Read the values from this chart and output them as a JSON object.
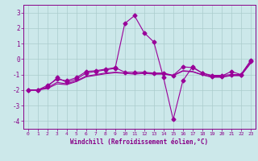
{
  "xlabel": "Windchill (Refroidissement éolien,°C)",
  "background_color": "#cce8ea",
  "line_color": "#990099",
  "grid_color": "#aacccc",
  "xlim": [
    -0.5,
    23.5
  ],
  "ylim": [
    -4.5,
    3.5
  ],
  "xticks": [
    0,
    1,
    2,
    3,
    4,
    5,
    6,
    7,
    8,
    9,
    10,
    11,
    12,
    13,
    14,
    15,
    16,
    17,
    18,
    19,
    20,
    21,
    22,
    23
  ],
  "yticks": [
    -4,
    -3,
    -2,
    -1,
    0,
    1,
    2,
    3
  ],
  "series": [
    {
      "x": [
        0,
        1,
        2,
        3,
        4,
        5,
        6,
        7,
        8,
        9,
        10,
        11,
        12,
        13,
        14,
        15,
        16,
        17,
        18,
        19,
        20,
        21,
        22,
        23
      ],
      "y": [
        -2,
        -2,
        -1.8,
        -1.2,
        -1.5,
        -1.3,
        -0.9,
        -0.8,
        -0.7,
        -0.6,
        2.3,
        2.8,
        1.7,
        1.1,
        -1.2,
        -3.9,
        -1.4,
        -0.5,
        -0.9,
        -1.1,
        -1.1,
        -0.8,
        -1.0,
        -0.1
      ],
      "marker": "D",
      "markersize": 2.5,
      "lw": 0.8
    },
    {
      "x": [
        0,
        1,
        2,
        3,
        4,
        5,
        6,
        7,
        8,
        9,
        10,
        11,
        12,
        13,
        14,
        15,
        16,
        17,
        18,
        19,
        20,
        21,
        22,
        23
      ],
      "y": [
        -2,
        -2,
        -1.7,
        -1.3,
        -1.4,
        -1.2,
        -0.8,
        -0.75,
        -0.65,
        -0.55,
        -0.85,
        -0.85,
        -0.85,
        -0.9,
        -0.9,
        -1.05,
        -0.5,
        -0.55,
        -0.9,
        -1.05,
        -1.05,
        -1.0,
        -1.0,
        -0.15
      ],
      "marker": "D",
      "markersize": 2.5,
      "lw": 0.8
    },
    {
      "x": [
        0,
        1,
        2,
        3,
        4,
        5,
        6,
        7,
        8,
        9,
        10,
        11,
        12,
        13,
        14,
        15,
        16,
        17,
        18,
        19,
        20,
        21,
        22,
        23
      ],
      "y": [
        -2,
        -2,
        -1.85,
        -1.5,
        -1.6,
        -1.4,
        -1.1,
        -1.0,
        -0.9,
        -0.85,
        -0.9,
        -0.95,
        -0.9,
        -0.95,
        -0.95,
        -1.05,
        -0.75,
        -0.8,
        -1.0,
        -1.15,
        -1.15,
        -1.05,
        -1.05,
        -0.25
      ],
      "marker": null,
      "lw": 0.8
    },
    {
      "x": [
        0,
        1,
        2,
        3,
        4,
        5,
        6,
        7,
        8,
        9,
        10,
        11,
        12,
        13,
        14,
        15,
        16,
        17,
        18,
        19,
        20,
        21,
        22,
        23
      ],
      "y": [
        -2,
        -2,
        -1.9,
        -1.6,
        -1.65,
        -1.45,
        -1.15,
        -1.05,
        -0.95,
        -0.88,
        -0.92,
        -0.97,
        -0.92,
        -0.97,
        -0.97,
        -1.07,
        -0.78,
        -0.82,
        -1.02,
        -1.17,
        -1.17,
        -1.07,
        -1.07,
        -0.28
      ],
      "marker": null,
      "lw": 0.8
    }
  ]
}
